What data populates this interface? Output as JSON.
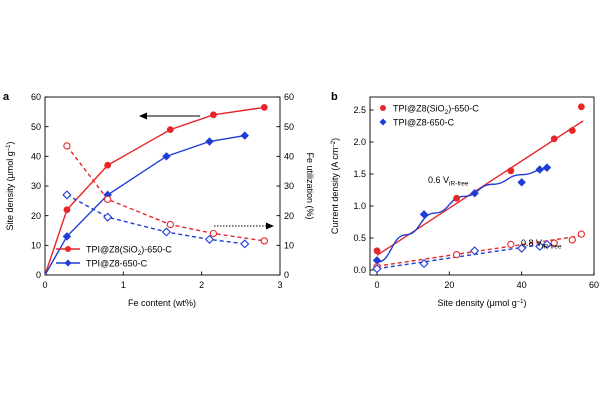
{
  "colors": {
    "red": "#e8262a",
    "blue": "#1f3dd6",
    "axis": "#000000"
  },
  "chart_data": [
    {
      "type": "line",
      "panel": "a",
      "title": "",
      "xlabel": "Fe content (wt%)",
      "ylabel": "Site density (μmol g⁻¹)",
      "ylabel_main": "Site density (μmol g",
      "ylabel_sup": "–1",
      "ylabel_close": ")",
      "y2label": "Fe utilization (%)",
      "xlim": [
        0,
        3
      ],
      "ylim": [
        0,
        60
      ],
      "y2lim": [
        0,
        60
      ],
      "xticks": [
        "0",
        "1",
        "2",
        "3"
      ],
      "yticks": [
        "0",
        "10",
        "20",
        "30",
        "40",
        "50",
        "60"
      ],
      "y2ticks": [
        "0",
        "10",
        "20",
        "30",
        "40",
        "50",
        "60"
      ],
      "legend_position": "bottom-right",
      "legend": [
        {
          "series": 0,
          "main": "TPI@Z8(SiO",
          "sub": "2",
          "rest": ")-650-C"
        },
        {
          "series": 1,
          "main": "TPI@Z8-650-C",
          "sub": "",
          "rest": ""
        }
      ],
      "series": [
        {
          "name": "TPI@Z8(SiO2)-650-C site density",
          "color": "red",
          "marker": "circle",
          "filled": true,
          "dashed": false,
          "axis": "left",
          "x": [
            0,
            0.28,
            0.8,
            1.6,
            2.15,
            2.8
          ],
          "y": [
            0,
            22,
            37,
            49,
            54,
            56.5
          ]
        },
        {
          "name": "TPI@Z8-650-C site density",
          "color": "blue",
          "marker": "diamond",
          "filled": true,
          "dashed": false,
          "axis": "left",
          "x": [
            0,
            0.28,
            0.8,
            1.55,
            2.1,
            2.55
          ],
          "y": [
            0,
            13,
            27,
            40,
            45,
            47
          ]
        },
        {
          "name": "TPI@Z8(SiO2)-650-C Fe utilization",
          "color": "red",
          "marker": "circle",
          "filled": false,
          "dashed": true,
          "axis": "right",
          "x": [
            0.28,
            0.8,
            1.6,
            2.15,
            2.8
          ],
          "y": [
            43.5,
            25.5,
            17,
            14,
            11.5
          ]
        },
        {
          "name": "TPI@Z8-650-C Fe utilization",
          "color": "blue",
          "marker": "diamond",
          "filled": false,
          "dashed": true,
          "axis": "right",
          "x": [
            0.28,
            0.8,
            1.55,
            2.1,
            2.55
          ],
          "y": [
            27,
            19.5,
            14.5,
            12,
            10.5
          ]
        }
      ],
      "annotations": [
        "left arrow → site density axis",
        "right dotted arrow → Fe utilization axis"
      ]
    },
    {
      "type": "scatter",
      "panel": "b",
      "title": "",
      "xlabel": "Site density (μmol g⁻¹)",
      "xlabel_main": "Site density (μmol g",
      "xlabel_sup": "–1",
      "xlabel_close": ")",
      "ylabel": "Current density (A cm⁻²)",
      "ylabel_main": "Current density (A cm",
      "ylabel_sup": "–2",
      "ylabel_close": ")",
      "xlim": [
        0,
        60
      ],
      "ylim": [
        0,
        2.5
      ],
      "xticks": [
        "0",
        "20",
        "40",
        "60"
      ],
      "yticks": [
        "0.0",
        "0.5",
        "1.0",
        "1.5",
        "2.0",
        "2.5"
      ],
      "legend_position": "top-left",
      "legend": [
        {
          "series": 0,
          "main": "TPI@Z8(SiO",
          "sub": "2",
          "rest": ")-650-C"
        },
        {
          "series": 1,
          "main": "TPI@Z8-650-C",
          "sub": "",
          "rest": ""
        }
      ],
      "series": [
        {
          "name": "TPI@Z8(SiO2)-650-C at 0.6 V",
          "color": "red",
          "marker": "circle",
          "filled": true,
          "x": [
            0,
            22,
            37,
            49,
            54,
            56.5
          ],
          "y": [
            0.3,
            1.12,
            1.55,
            2.05,
            2.18,
            2.55
          ],
          "fit": {
            "kind": "linear",
            "x": [
              0,
              57
            ],
            "y": [
              0.23,
              2.33
            ]
          }
        },
        {
          "name": "TPI@Z8-650-C at 0.6 V",
          "color": "blue",
          "marker": "diamond",
          "filled": true,
          "x": [
            0,
            13,
            27,
            40,
            45,
            47
          ],
          "y": [
            0.15,
            0.87,
            1.2,
            1.37,
            1.57,
            1.6
          ],
          "fit": {
            "kind": "curve",
            "x": [
              0,
              8,
              16,
              24,
              32,
              40,
              47
            ],
            "y": [
              0.12,
              0.55,
              0.89,
              1.15,
              1.34,
              1.49,
              1.58
            ]
          }
        },
        {
          "name": "TPI@Z8(SiO2)-650-C at 0.8 V",
          "color": "red",
          "marker": "circle",
          "filled": false,
          "x": [
            0,
            22,
            37,
            49,
            54,
            56.5
          ],
          "y": [
            0.05,
            0.24,
            0.4,
            0.42,
            0.47,
            0.56
          ],
          "fit": {
            "kind": "linear-dashed",
            "x": [
              0,
              57
            ],
            "y": [
              0.06,
              0.54
            ]
          }
        },
        {
          "name": "TPI@Z8-650-C at 0.8 V",
          "color": "blue",
          "marker": "diamond",
          "filled": false,
          "x": [
            0,
            13,
            27,
            40,
            45,
            47
          ],
          "y": [
            0.02,
            0.1,
            0.3,
            0.34,
            0.37,
            0.4
          ],
          "fit": {
            "kind": "linear-dashed",
            "x": [
              0,
              47
            ],
            "y": [
              0.02,
              0.41
            ]
          }
        }
      ],
      "labels": [
        {
          "main": "0.6 V",
          "sub": "iR-free",
          "color": "blue"
        },
        {
          "main": "0.8 V",
          "sub": "iR-free",
          "color": "red"
        }
      ]
    }
  ]
}
